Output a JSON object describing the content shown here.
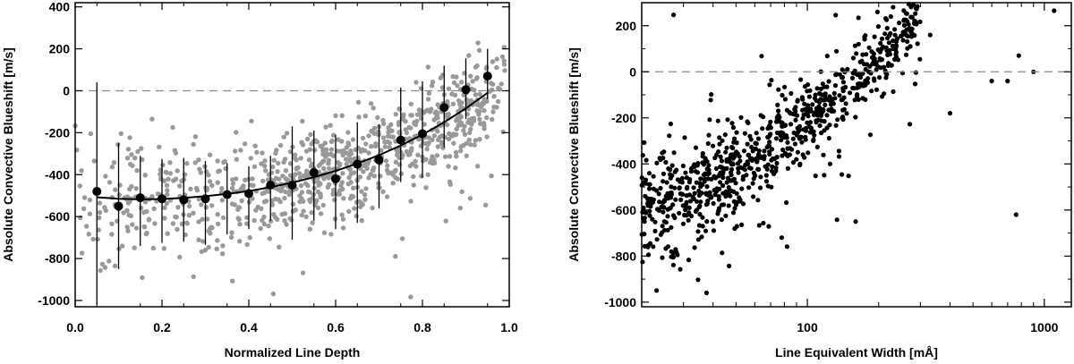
{
  "chart_data": [
    {
      "type": "scatter",
      "xlabel": "Normalized Line Depth",
      "ylabel": "Absolute Convective Blueshift [m/s]",
      "xlim": [
        0.0,
        1.0
      ],
      "ylim": [
        -1030,
        420
      ],
      "x_ticks": [
        0.0,
        0.2,
        0.4,
        0.6,
        0.8,
        1.0
      ],
      "x_tick_labels": [
        "0.0",
        "0.2",
        "0.4",
        "0.6",
        "0.8",
        "1.0"
      ],
      "y_ticks": [
        -1000,
        -800,
        -600,
        -400,
        -200,
        0,
        200,
        400
      ],
      "y_tick_labels": [
        "-1000",
        "-800",
        "-600",
        "-400",
        "-200",
        "0",
        "200",
        "400"
      ],
      "reference_line": {
        "y": 0,
        "style": "dashed",
        "color": "#888888"
      },
      "point_color": "#999999",
      "binned_color": "#000000",
      "series": [
        {
          "kind": "binned_means_with_error_bars",
          "x": [
            0.05,
            0.1,
            0.15,
            0.2,
            0.25,
            0.3,
            0.35,
            0.4,
            0.45,
            0.5,
            0.55,
            0.6,
            0.65,
            0.7,
            0.75,
            0.8,
            0.85,
            0.9,
            0.95
          ],
          "y": [
            -480,
            -550,
            -510,
            -515,
            -520,
            -515,
            -495,
            -490,
            -450,
            -450,
            -390,
            -420,
            -350,
            -330,
            -235,
            -205,
            -80,
            5,
            70
          ],
          "err_low": [
            540,
            300,
            230,
            210,
            200,
            220,
            190,
            170,
            170,
            260,
            230,
            240,
            280,
            230,
            200,
            210,
            190,
            140,
            110
          ],
          "err_high": [
            520,
            300,
            200,
            190,
            200,
            180,
            150,
            130,
            140,
            280,
            200,
            210,
            200,
            170,
            250,
            250,
            200,
            150,
            130
          ]
        },
        {
          "kind": "polynomial_fit",
          "x": [
            0.05,
            0.1,
            0.15,
            0.2,
            0.25,
            0.3,
            0.35,
            0.4,
            0.45,
            0.5,
            0.55,
            0.6,
            0.65,
            0.7,
            0.75,
            0.8,
            0.85,
            0.9,
            0.95
          ],
          "y": [
            -508,
            -515,
            -518,
            -516,
            -511,
            -503,
            -492,
            -478,
            -460,
            -438,
            -412,
            -382,
            -347,
            -307,
            -261,
            -209,
            -150,
            -84,
            -10
          ]
        }
      ],
      "scatter_summary": {
        "n_points": 950,
        "x_range": [
          0.0,
          1.0
        ],
        "y_range": [
          -1030,
          420
        ]
      }
    },
    {
      "type": "scatter",
      "xlabel": "Line Equivalent Width [mÅ]",
      "ylabel": "Absolute Convective Blueshift [m/s]",
      "xscale": "log",
      "xlim": [
        20,
        1300
      ],
      "ylim": [
        -1020,
        300
      ],
      "x_ticks": [
        100,
        1000
      ],
      "x_tick_labels": [
        "100",
        "1000"
      ],
      "y_ticks": [
        -1000,
        -800,
        -600,
        -400,
        -200,
        0,
        200
      ],
      "y_tick_labels": [
        "-1000",
        "-800",
        "-600",
        "-400",
        "-200",
        "0",
        "200"
      ],
      "reference_line": {
        "y": 0,
        "style": "dashed",
        "color": "#888888"
      },
      "point_color": "#000000",
      "outliers": [
        {
          "x": 1100,
          "y": 265
        },
        {
          "x": 900,
          "y": 0
        },
        {
          "x": 780,
          "y": 70
        },
        {
          "x": 760,
          "y": -620
        },
        {
          "x": 700,
          "y": -40
        },
        {
          "x": 600,
          "y": -40
        },
        {
          "x": 400,
          "y": -180
        },
        {
          "x": 330,
          "y": 160
        },
        {
          "x": 160,
          "y": -650
        }
      ],
      "scatter_summary": {
        "n_points": 860,
        "x_range": [
          20,
          1300
        ],
        "y_range": [
          -1020,
          300
        ]
      }
    }
  ]
}
